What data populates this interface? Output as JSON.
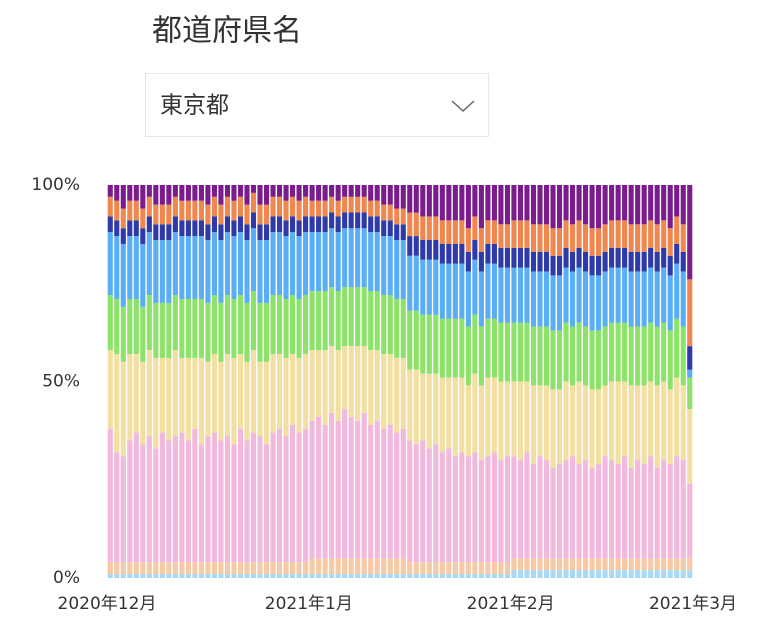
{
  "filter": {
    "label": "都道府県名",
    "selected": "東京都"
  },
  "chart_data": {
    "type": "stacked_bar_100",
    "xlim": [
      0,
      90
    ],
    "xticks": [
      {
        "value": 0,
        "label": "2020年12月"
      },
      {
        "value": 31,
        "label": "2021年1月"
      },
      {
        "value": 62,
        "label": "2021年2月"
      },
      {
        "value": 90,
        "label": "2021年3月"
      }
    ],
    "ylim": [
      0,
      100
    ],
    "yticks": [
      {
        "value": 0,
        "label": "0%"
      },
      {
        "value": 50,
        "label": "50%"
      },
      {
        "value": 100,
        "label": "100%"
      }
    ],
    "grid": false,
    "series": [
      {
        "color": "#a6d9f5",
        "values": [
          1,
          1,
          1,
          1,
          1,
          1,
          1,
          1,
          1,
          1,
          1,
          1,
          1,
          1,
          1,
          1,
          1,
          1,
          1,
          1,
          1,
          1,
          1,
          1,
          1,
          1,
          1,
          1,
          1,
          1,
          1,
          1,
          1,
          1,
          1,
          1,
          1,
          1,
          1,
          1,
          1,
          1,
          1,
          1,
          1,
          1,
          1,
          1,
          1,
          1,
          1,
          1,
          1,
          1,
          1,
          1,
          1,
          1,
          1,
          1,
          1,
          1,
          2,
          2,
          2,
          2,
          2,
          2,
          2,
          2,
          2,
          2,
          2,
          2,
          2,
          2,
          2,
          2,
          2,
          2,
          2,
          2,
          2,
          2,
          2,
          2,
          2,
          2,
          2,
          2
        ]
      },
      {
        "color": "#f7c9a4",
        "values": [
          3,
          3,
          3,
          3,
          3,
          3,
          3,
          3,
          3,
          3,
          3,
          3,
          3,
          3,
          3,
          3,
          3,
          3,
          3,
          3,
          3,
          3,
          3,
          3,
          3,
          3,
          3,
          3,
          3,
          3,
          3,
          4,
          4,
          4,
          4,
          4,
          4,
          4,
          4,
          4,
          4,
          4,
          4,
          4,
          4,
          4,
          3,
          3,
          3,
          3,
          3,
          3,
          3,
          3,
          3,
          3,
          3,
          3,
          3,
          3,
          3,
          3,
          3,
          3,
          3,
          3,
          3,
          3,
          3,
          3,
          3,
          3,
          3,
          3,
          3,
          3,
          3,
          3,
          3,
          3,
          3,
          3,
          3,
          3,
          3,
          3,
          3,
          3,
          3,
          3
        ]
      },
      {
        "color": "#f2b8de",
        "values": [
          34,
          28,
          27,
          31,
          33,
          30,
          32,
          29,
          33,
          31,
          32,
          33,
          31,
          34,
          30,
          32,
          33,
          31,
          32,
          30,
          34,
          31,
          33,
          32,
          30,
          33,
          34,
          32,
          35,
          33,
          34,
          35,
          36,
          34,
          37,
          35,
          38,
          36,
          35,
          37,
          34,
          35,
          33,
          34,
          32,
          33,
          31,
          30,
          31,
          29,
          30,
          28,
          29,
          27,
          28,
          27,
          28,
          26,
          27,
          28,
          26,
          27,
          26,
          25,
          27,
          24,
          26,
          25,
          23,
          24,
          25,
          26,
          24,
          25,
          23,
          24,
          26,
          25,
          24,
          26,
          23,
          25,
          24,
          26,
          23,
          25,
          24,
          26,
          25,
          19
        ]
      },
      {
        "color": "#f3dfa2",
        "values": [
          20,
          25,
          24,
          22,
          20,
          21,
          22,
          23,
          19,
          21,
          22,
          19,
          21,
          18,
          22,
          19,
          20,
          20,
          21,
          22,
          19,
          20,
          21,
          19,
          21,
          20,
          19,
          20,
          18,
          19,
          19,
          18,
          17,
          19,
          17,
          18,
          16,
          18,
          19,
          17,
          19,
          18,
          19,
          18,
          19,
          18,
          18,
          19,
          17,
          19,
          18,
          19,
          18,
          20,
          19,
          18,
          20,
          19,
          20,
          19,
          20,
          19,
          19,
          20,
          18,
          20,
          18,
          19,
          20,
          19,
          20,
          18,
          21,
          19,
          20,
          19,
          18,
          20,
          21,
          19,
          21,
          19,
          20,
          19,
          21,
          20,
          19,
          20,
          19,
          19
        ]
      },
      {
        "color": "#8de36a",
        "values": [
          14,
          14,
          14,
          14,
          14,
          14,
          14,
          14,
          14,
          14,
          14,
          15,
          15,
          15,
          15,
          15,
          15,
          15,
          15,
          15,
          15,
          15,
          15,
          15,
          15,
          15,
          15,
          15,
          15,
          15,
          15,
          15,
          15,
          15,
          15,
          15,
          15,
          15,
          15,
          15,
          15,
          15,
          15,
          15,
          15,
          15,
          15,
          15,
          15,
          15,
          15,
          15,
          15,
          15,
          15,
          15,
          15,
          15,
          15,
          15,
          15,
          15,
          15,
          15,
          15,
          15,
          15,
          15,
          15,
          15,
          15,
          15,
          15,
          15,
          15,
          15,
          15,
          15,
          15,
          15,
          15,
          15,
          15,
          15,
          15,
          15,
          15,
          15,
          15,
          8
        ]
      },
      {
        "color": "#5aaef5",
        "values": [
          16,
          16,
          16,
          16,
          16,
          16,
          16,
          16,
          16,
          16,
          16,
          16,
          16,
          16,
          16,
          16,
          16,
          16,
          16,
          16,
          16,
          16,
          16,
          16,
          16,
          16,
          16,
          16,
          16,
          16,
          16,
          15,
          15,
          15,
          15,
          15,
          15,
          15,
          15,
          15,
          15,
          15,
          15,
          15,
          15,
          15,
          14,
          14,
          14,
          14,
          14,
          14,
          14,
          14,
          14,
          14,
          14,
          14,
          14,
          14,
          14,
          14,
          14,
          14,
          14,
          14,
          14,
          14,
          14,
          14,
          14,
          14,
          14,
          14,
          14,
          14,
          14,
          14,
          14,
          14,
          14,
          14,
          14,
          14,
          14,
          14,
          14,
          14,
          14,
          2
        ]
      },
      {
        "color": "#2e3aa8",
        "values": [
          4,
          4,
          4,
          4,
          4,
          4,
          4,
          4,
          4,
          4,
          4,
          4,
          4,
          4,
          4,
          4,
          4,
          4,
          4,
          4,
          4,
          4,
          4,
          4,
          4,
          4,
          4,
          4,
          4,
          4,
          4,
          4,
          4,
          4,
          4,
          4,
          4,
          4,
          4,
          4,
          4,
          4,
          4,
          4,
          4,
          4,
          5,
          5,
          5,
          5,
          5,
          5,
          5,
          5,
          5,
          5,
          5,
          5,
          5,
          5,
          5,
          5,
          5,
          5,
          5,
          5,
          5,
          5,
          5,
          5,
          5,
          5,
          5,
          5,
          5,
          5,
          5,
          5,
          5,
          5,
          5,
          5,
          5,
          5,
          5,
          5,
          5,
          5,
          5,
          6
        ]
      },
      {
        "color": "#f0874f",
        "values": [
          5,
          5,
          5,
          5,
          5,
          5,
          5,
          5,
          5,
          5,
          5,
          5,
          5,
          5,
          5,
          5,
          5,
          5,
          5,
          5,
          5,
          5,
          5,
          5,
          5,
          5,
          5,
          5,
          5,
          5,
          5,
          4,
          4,
          4,
          4,
          4,
          4,
          4,
          4,
          4,
          4,
          4,
          4,
          4,
          4,
          4,
          6,
          6,
          6,
          6,
          6,
          6,
          6,
          6,
          6,
          6,
          6,
          6,
          6,
          6,
          6,
          6,
          7,
          7,
          7,
          7,
          7,
          7,
          7,
          7,
          7,
          7,
          7,
          7,
          7,
          7,
          7,
          7,
          7,
          7,
          7,
          7,
          7,
          7,
          7,
          7,
          7,
          7,
          7,
          17
        ]
      },
      {
        "color": "#7b1c8c",
        "values": [
          3,
          4,
          6,
          4,
          4,
          6,
          3,
          5,
          5,
          5,
          3,
          4,
          4,
          4,
          4,
          5,
          3,
          5,
          3,
          4,
          3,
          5,
          2,
          5,
          5,
          3,
          3,
          4,
          3,
          4,
          3,
          4,
          4,
          4,
          3,
          4,
          3,
          3,
          3,
          3,
          4,
          4,
          5,
          5,
          6,
          6,
          7,
          7,
          8,
          8,
          8,
          9,
          9,
          9,
          9,
          11,
          8,
          11,
          9,
          9,
          10,
          10,
          9,
          9,
          9,
          10,
          10,
          10,
          11,
          11,
          9,
          10,
          9,
          10,
          11,
          11,
          10,
          9,
          9,
          9,
          10,
          10,
          10,
          9,
          10,
          9,
          11,
          8,
          10,
          24
        ]
      }
    ]
  }
}
